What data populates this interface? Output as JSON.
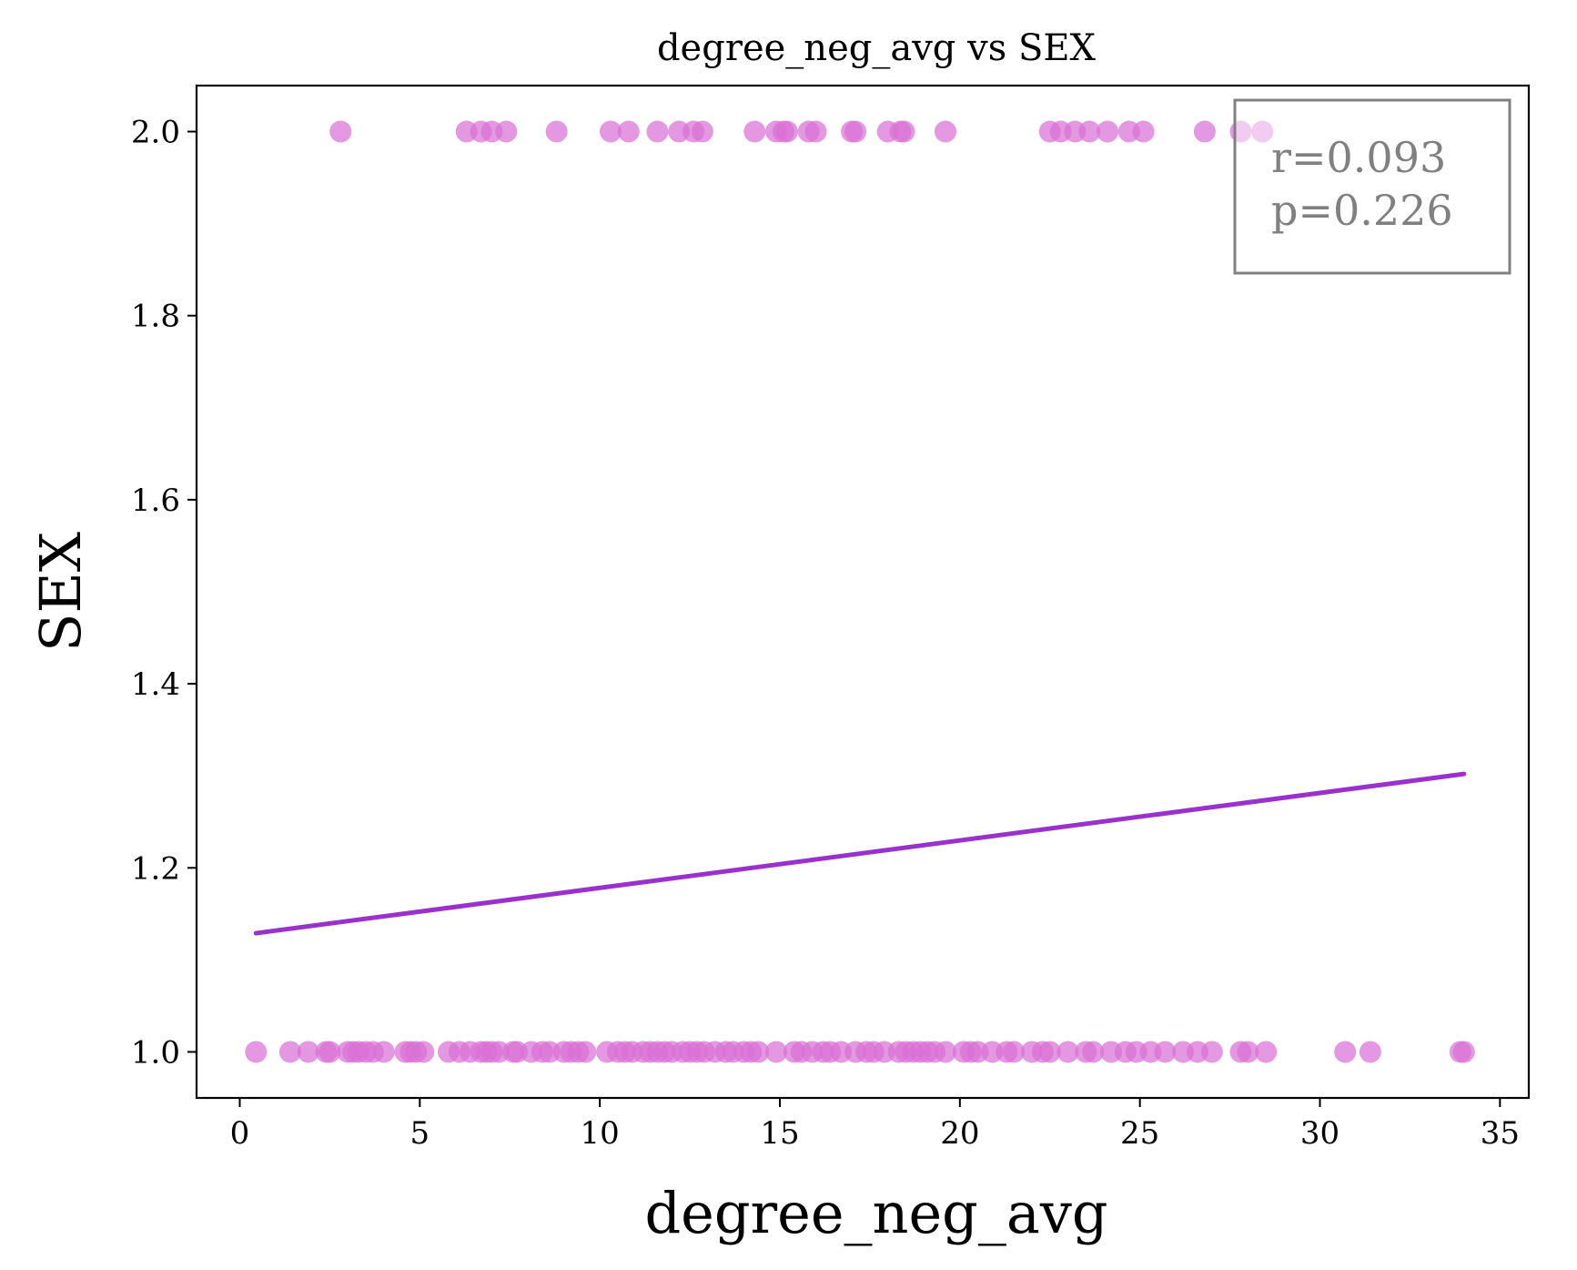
{
  "chart_data": {
    "type": "scatter",
    "title": "degree_neg_avg vs SEX",
    "xlabel": "degree_neg_avg",
    "ylabel": "SEX",
    "xlim": [
      -1.2,
      35.8
    ],
    "ylim": [
      0.95,
      2.05
    ],
    "xticks": [
      0,
      5,
      10,
      15,
      20,
      25,
      30,
      35
    ],
    "xtick_labels": [
      "0",
      "5",
      "10",
      "15",
      "20",
      "25",
      "30",
      "35"
    ],
    "yticks": [
      1.0,
      1.2,
      1.4,
      1.6,
      1.8,
      2.0
    ],
    "ytick_labels": [
      "1.0",
      "1.2",
      "1.4",
      "1.6",
      "1.8",
      "2.0"
    ],
    "grid": false,
    "series": [
      {
        "type": "scatter",
        "color": "#da70d6",
        "opacity": 0.72,
        "points": [
          {
            "x": 0.45,
            "y": 1
          },
          {
            "x": 1.4,
            "y": 1
          },
          {
            "x": 1.9,
            "y": 1
          },
          {
            "x": 2.4,
            "y": 1
          },
          {
            "x": 2.5,
            "y": 1
          },
          {
            "x": 3.0,
            "y": 1
          },
          {
            "x": 3.15,
            "y": 1
          },
          {
            "x": 3.3,
            "y": 1
          },
          {
            "x": 3.5,
            "y": 1
          },
          {
            "x": 3.7,
            "y": 1
          },
          {
            "x": 4.0,
            "y": 1
          },
          {
            "x": 4.6,
            "y": 1
          },
          {
            "x": 4.75,
            "y": 1
          },
          {
            "x": 4.9,
            "y": 1
          },
          {
            "x": 5.1,
            "y": 1
          },
          {
            "x": 5.8,
            "y": 1
          },
          {
            "x": 6.1,
            "y": 1
          },
          {
            "x": 6.4,
            "y": 1
          },
          {
            "x": 6.7,
            "y": 1
          },
          {
            "x": 6.85,
            "y": 1
          },
          {
            "x": 7.0,
            "y": 1
          },
          {
            "x": 7.2,
            "y": 1
          },
          {
            "x": 7.6,
            "y": 1
          },
          {
            "x": 7.7,
            "y": 1
          },
          {
            "x": 8.1,
            "y": 1
          },
          {
            "x": 8.4,
            "y": 1
          },
          {
            "x": 8.6,
            "y": 1
          },
          {
            "x": 9.0,
            "y": 1
          },
          {
            "x": 9.2,
            "y": 1
          },
          {
            "x": 9.4,
            "y": 1
          },
          {
            "x": 9.6,
            "y": 1
          },
          {
            "x": 10.2,
            "y": 1
          },
          {
            "x": 10.5,
            "y": 1
          },
          {
            "x": 10.7,
            "y": 1
          },
          {
            "x": 10.9,
            "y": 1
          },
          {
            "x": 11.2,
            "y": 1
          },
          {
            "x": 11.4,
            "y": 1
          },
          {
            "x": 11.6,
            "y": 1
          },
          {
            "x": 11.8,
            "y": 1
          },
          {
            "x": 12.0,
            "y": 1
          },
          {
            "x": 12.3,
            "y": 1
          },
          {
            "x": 12.5,
            "y": 1
          },
          {
            "x": 12.7,
            "y": 1
          },
          {
            "x": 12.9,
            "y": 1
          },
          {
            "x": 13.2,
            "y": 1
          },
          {
            "x": 13.5,
            "y": 1
          },
          {
            "x": 13.7,
            "y": 1
          },
          {
            "x": 14.0,
            "y": 1
          },
          {
            "x": 14.2,
            "y": 1
          },
          {
            "x": 14.4,
            "y": 1
          },
          {
            "x": 14.9,
            "y": 1
          },
          {
            "x": 15.4,
            "y": 1
          },
          {
            "x": 15.6,
            "y": 1
          },
          {
            "x": 15.9,
            "y": 1
          },
          {
            "x": 16.2,
            "y": 1
          },
          {
            "x": 16.4,
            "y": 1
          },
          {
            "x": 16.7,
            "y": 1
          },
          {
            "x": 17.1,
            "y": 1
          },
          {
            "x": 17.4,
            "y": 1
          },
          {
            "x": 17.6,
            "y": 1
          },
          {
            "x": 17.9,
            "y": 1
          },
          {
            "x": 18.3,
            "y": 1
          },
          {
            "x": 18.5,
            "y": 1
          },
          {
            "x": 18.7,
            "y": 1
          },
          {
            "x": 18.9,
            "y": 1
          },
          {
            "x": 19.1,
            "y": 1
          },
          {
            "x": 19.3,
            "y": 1
          },
          {
            "x": 19.6,
            "y": 1
          },
          {
            "x": 20.1,
            "y": 1
          },
          {
            "x": 20.3,
            "y": 1
          },
          {
            "x": 20.5,
            "y": 1
          },
          {
            "x": 20.9,
            "y": 1
          },
          {
            "x": 21.3,
            "y": 1
          },
          {
            "x": 21.5,
            "y": 1
          },
          {
            "x": 22.0,
            "y": 1
          },
          {
            "x": 22.3,
            "y": 1
          },
          {
            "x": 22.5,
            "y": 1
          },
          {
            "x": 23.0,
            "y": 1
          },
          {
            "x": 23.5,
            "y": 1
          },
          {
            "x": 23.7,
            "y": 1
          },
          {
            "x": 24.2,
            "y": 1
          },
          {
            "x": 24.6,
            "y": 1
          },
          {
            "x": 24.9,
            "y": 1
          },
          {
            "x": 25.3,
            "y": 1
          },
          {
            "x": 25.7,
            "y": 1
          },
          {
            "x": 26.2,
            "y": 1
          },
          {
            "x": 26.6,
            "y": 1
          },
          {
            "x": 27.0,
            "y": 1
          },
          {
            "x": 27.8,
            "y": 1
          },
          {
            "x": 28.0,
            "y": 1
          },
          {
            "x": 28.5,
            "y": 1
          },
          {
            "x": 30.7,
            "y": 1
          },
          {
            "x": 31.4,
            "y": 1
          },
          {
            "x": 33.9,
            "y": 1
          },
          {
            "x": 34.0,
            "y": 1
          },
          {
            "x": 2.8,
            "y": 2
          },
          {
            "x": 6.3,
            "y": 2
          },
          {
            "x": 6.7,
            "y": 2
          },
          {
            "x": 7.0,
            "y": 2
          },
          {
            "x": 7.4,
            "y": 2
          },
          {
            "x": 8.8,
            "y": 2
          },
          {
            "x": 10.3,
            "y": 2
          },
          {
            "x": 10.8,
            "y": 2
          },
          {
            "x": 11.6,
            "y": 2
          },
          {
            "x": 12.2,
            "y": 2
          },
          {
            "x": 12.6,
            "y": 2
          },
          {
            "x": 12.85,
            "y": 2
          },
          {
            "x": 14.3,
            "y": 2
          },
          {
            "x": 14.9,
            "y": 2
          },
          {
            "x": 15.1,
            "y": 2
          },
          {
            "x": 15.2,
            "y": 2
          },
          {
            "x": 15.8,
            "y": 2
          },
          {
            "x": 16.0,
            "y": 2
          },
          {
            "x": 17.0,
            "y": 2
          },
          {
            "x": 17.1,
            "y": 2
          },
          {
            "x": 18.0,
            "y": 2
          },
          {
            "x": 18.35,
            "y": 2
          },
          {
            "x": 18.45,
            "y": 2
          },
          {
            "x": 19.6,
            "y": 2
          },
          {
            "x": 22.5,
            "y": 2
          },
          {
            "x": 22.8,
            "y": 2
          },
          {
            "x": 23.2,
            "y": 2
          },
          {
            "x": 23.6,
            "y": 2
          },
          {
            "x": 24.1,
            "y": 2
          },
          {
            "x": 24.7,
            "y": 2
          },
          {
            "x": 25.1,
            "y": 2
          },
          {
            "x": 26.8,
            "y": 2
          },
          {
            "x": 27.8,
            "y": 2
          },
          {
            "x": 28.4,
            "y": 2
          }
        ]
      },
      {
        "type": "line",
        "color": "#9932cc",
        "x": [
          0.45,
          34.0
        ],
        "y": [
          1.129,
          1.302
        ]
      }
    ],
    "annotation": {
      "line1": "r=0.093",
      "line2": "p=0.226",
      "position": "top-right",
      "text_color": "#808080",
      "border_color": "#808080"
    }
  }
}
